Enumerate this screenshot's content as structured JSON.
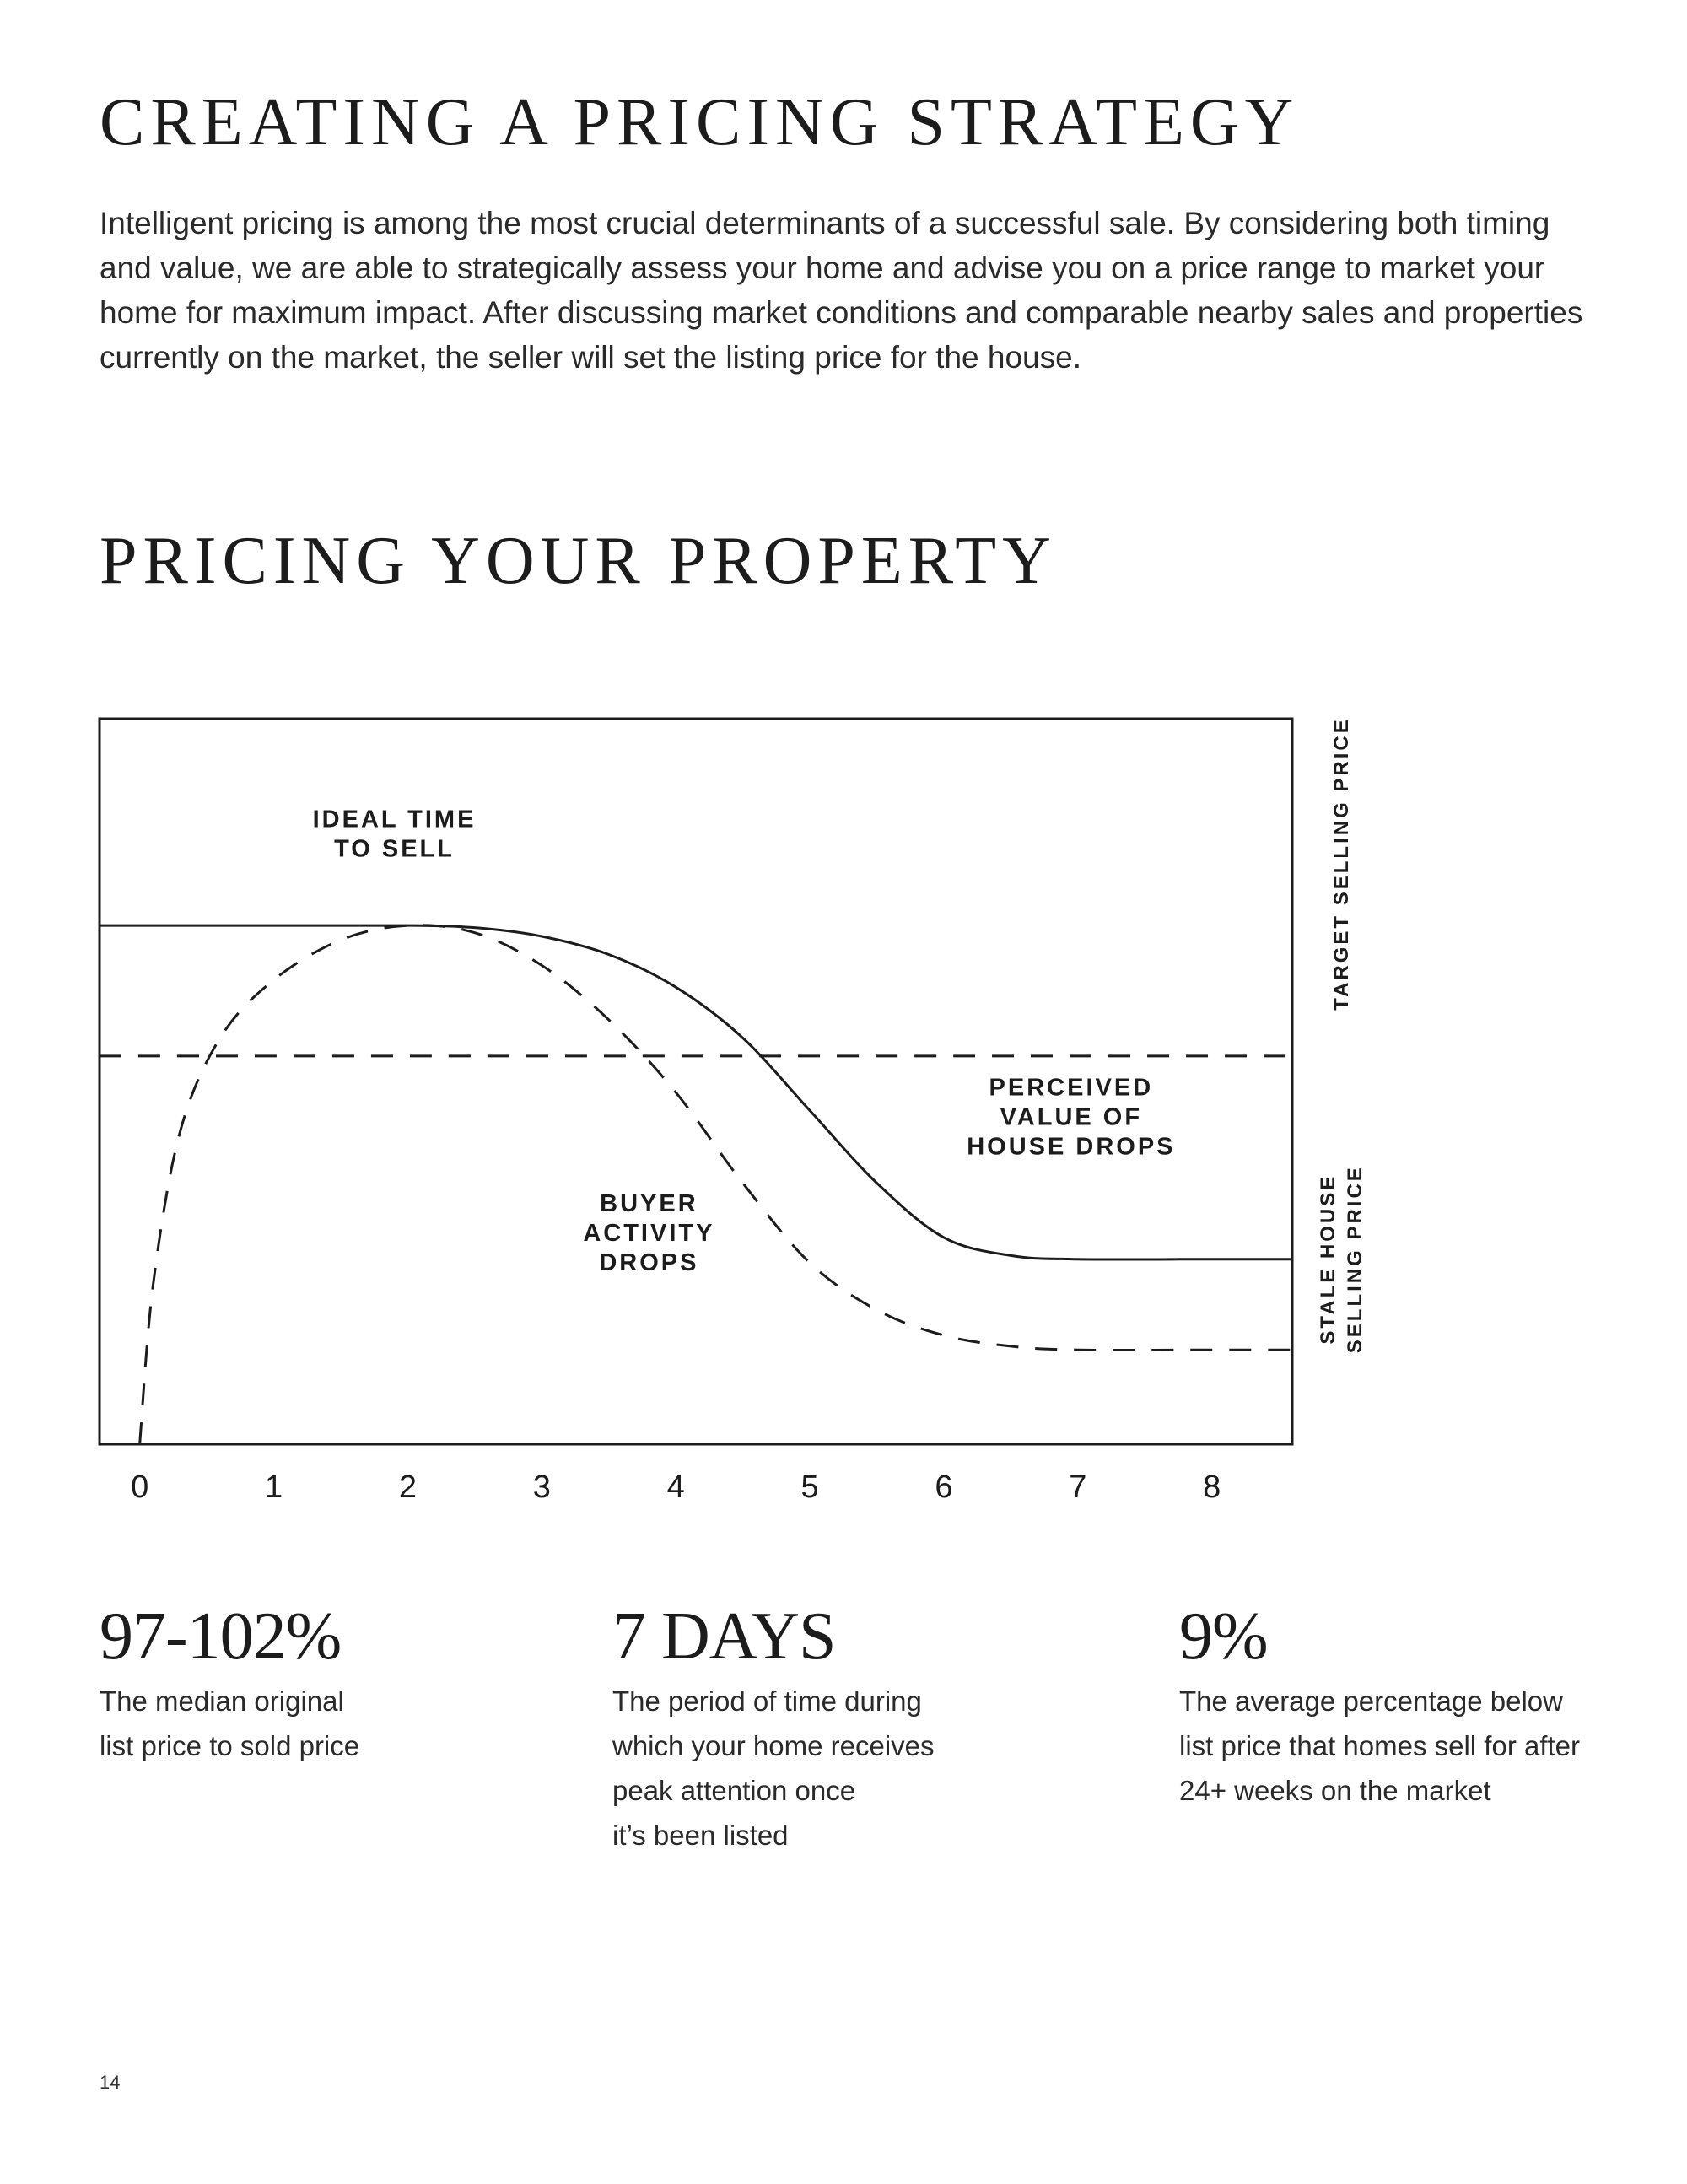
{
  "section1": {
    "title": "CREATING A PRICING STRATEGY",
    "body": "Intelligent pricing is among the most crucial determinants of a successful sale. By considering both timing and value, we are able to strategically assess your home and advise you on a price range to market your home for maximum impact. After discussing market conditions and comparable nearby sales and properties currently on the market, the seller will set the listing price for the house."
  },
  "section2": {
    "title": "PRICING YOUR PROPERTY"
  },
  "chart_data": {
    "type": "line",
    "title": "",
    "xlabel": "",
    "ylabel": "",
    "x_ticks": [
      0,
      1,
      2,
      3,
      4,
      5,
      6,
      7,
      8
    ],
    "xlim": [
      -0.3,
      8.6
    ],
    "ylim": [
      0,
      10
    ],
    "grid": false,
    "series": [
      {
        "name": "perceived-value",
        "style": "solid",
        "points": [
          [
            -0.3,
            7.15
          ],
          [
            1,
            7.15
          ],
          [
            2,
            7.15
          ],
          [
            2.5,
            7.12
          ],
          [
            3,
            7.0
          ],
          [
            3.5,
            6.75
          ],
          [
            4,
            6.3
          ],
          [
            4.5,
            5.6
          ],
          [
            5,
            4.6
          ],
          [
            5.5,
            3.6
          ],
          [
            6,
            2.85
          ],
          [
            6.5,
            2.6
          ],
          [
            7,
            2.55
          ],
          [
            8,
            2.55
          ],
          [
            8.6,
            2.55
          ]
        ]
      },
      {
        "name": "buyer-activity",
        "style": "dashed",
        "points": [
          [
            0,
            0
          ],
          [
            0.1,
            2.2
          ],
          [
            0.3,
            4.3
          ],
          [
            0.6,
            5.6
          ],
          [
            1,
            6.4
          ],
          [
            1.5,
            6.95
          ],
          [
            2,
            7.15
          ],
          [
            2.5,
            7.05
          ],
          [
            3,
            6.6
          ],
          [
            3.5,
            5.85
          ],
          [
            4,
            4.85
          ],
          [
            4.5,
            3.6
          ],
          [
            5,
            2.5
          ],
          [
            5.5,
            1.85
          ],
          [
            6,
            1.5
          ],
          [
            6.5,
            1.35
          ],
          [
            7,
            1.3
          ],
          [
            8,
            1.3
          ],
          [
            8.6,
            1.3
          ]
        ]
      },
      {
        "name": "target-selling-price",
        "style": "dashed",
        "points": [
          [
            -0.3,
            5.35
          ],
          [
            8.6,
            5.35
          ]
        ]
      }
    ],
    "annotations": [
      {
        "lines": [
          "IDEAL TIME",
          "TO SELL"
        ],
        "x": 1.9,
        "y": 8.3
      },
      {
        "lines": [
          "PERCEIVED",
          "VALUE OF",
          "HOUSE DROPS"
        ],
        "x": 6.95,
        "y": 4.4
      },
      {
        "lines": [
          "BUYER",
          "ACTIVITY",
          "DROPS"
        ],
        "x": 3.8,
        "y": 2.8
      }
    ],
    "right_labels": [
      {
        "lines": [
          "TARGET SELLING PRICE"
        ],
        "y": 8.0
      },
      {
        "lines": [
          "STALE HOUSE",
          "SELLING PRICE"
        ],
        "y": 2.55
      }
    ]
  },
  "stats": [
    {
      "value": "97-102%",
      "description": "The median original\nlist price to sold price"
    },
    {
      "value": "7 DAYS",
      "description": "The period of time during\nwhich your home receives\npeak attention once\nit’s been listed"
    },
    {
      "value": "9%",
      "description": "The average percentage below\nlist price that homes sell for after\n24+ weeks on the market"
    }
  ],
  "page_number": "14"
}
